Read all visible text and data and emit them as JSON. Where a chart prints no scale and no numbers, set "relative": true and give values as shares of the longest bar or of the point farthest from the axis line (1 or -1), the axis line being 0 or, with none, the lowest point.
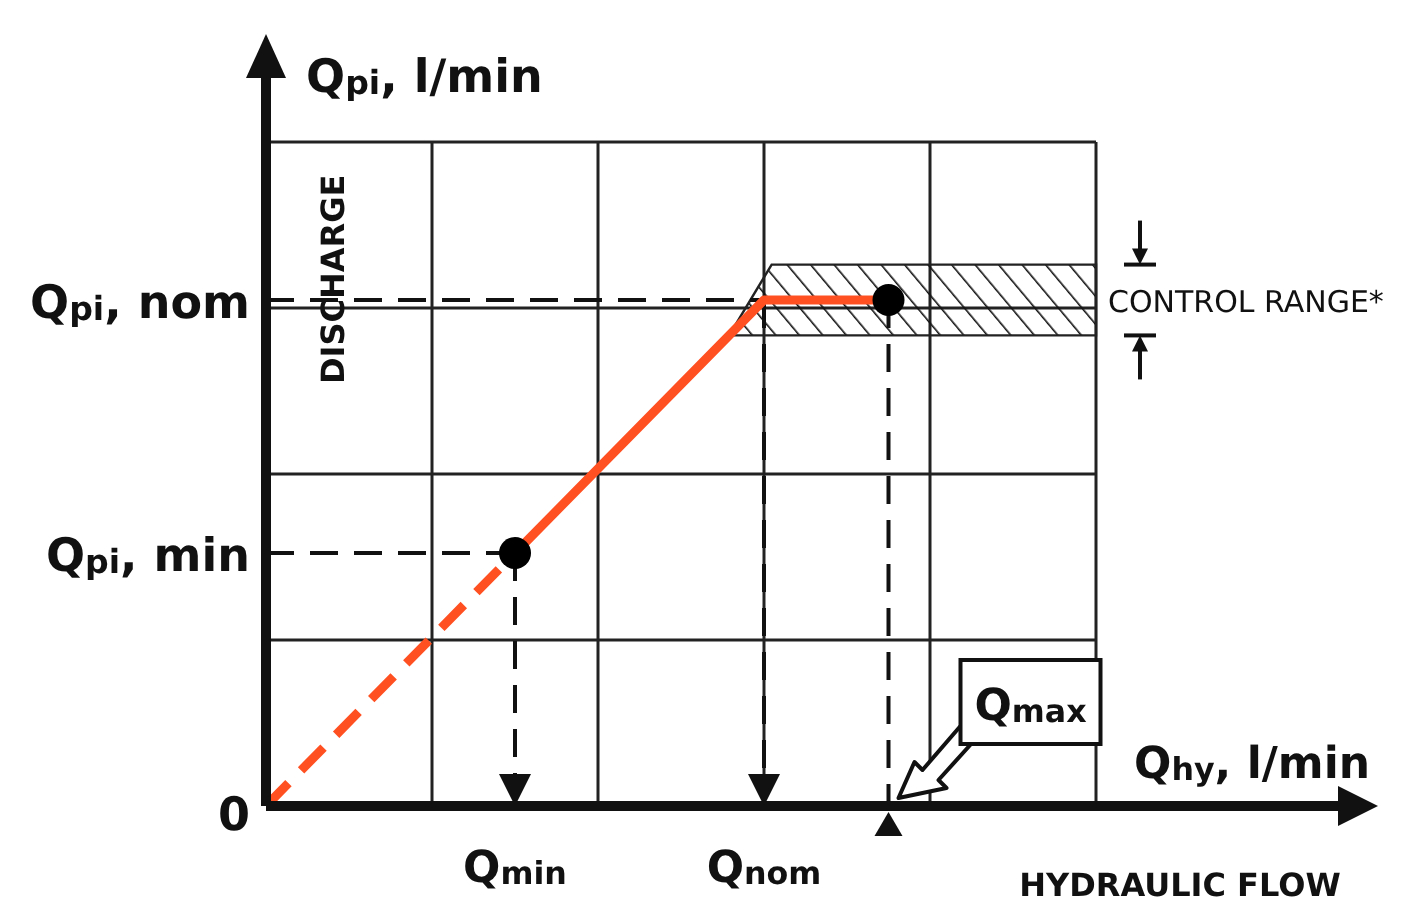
{
  "chart_data": {
    "type": "line",
    "xlabel": "Q$_{hy}$, l/min",
    "ylabel": "Q$_{pi}$, l/min",
    "relative": true,
    "categories": [
      null,
      null,
      null,
      null,
      null,
      null,
      "Q$_{min}$",
      null,
      null,
      null,
      null,
      null,
      "Q$_{nom}$",
      null,
      null,
      null,
      null,
      null,
      null,
      null,
      null
    ],
    "grid": true,
    "series": [
      {
        "color": "#ff5022",
        "values": [
          0,
          null,
          null,
          null,
          null,
          null,
          0.5,
          null,
          null,
          null,
          null,
          null,
          null,
          null,
          null,
          null,
          null,
          null,
          null,
          null,
          null
        ],
        "line_style": "dashed"
      },
      {
        "color": "#ff5022",
        "values": [
          null,
          null,
          null,
          null,
          null,
          null,
          0.5,
          null,
          null,
          null,
          null,
          null,
          1,
          null,
          null,
          1,
          null,
          null,
          null,
          null,
          null
        ],
        "line_style": "solid"
      },
      {
        "type": "scatter",
        "color": "#000000",
        "values": [
          null,
          null,
          null,
          null,
          null,
          null,
          0.5,
          null,
          null,
          null,
          null,
          null,
          null,
          null,
          null,
          1,
          null,
          null,
          null,
          null,
          null
        ],
        "marker": "circle"
      }
    ],
    "bands": [
      {
        "axis": "y",
        "from": 0.93,
        "to": 1.07,
        "label": "CONTROL RANGE*"
      }
    ],
    "annotations": [
      "DISCHARGE",
      "HYDRAULIC FLOW",
      "Q$_{max}$",
      "0",
      "Q$_{pi}$, min",
      "Q$_{pi}$, nom"
    ]
  }
}
